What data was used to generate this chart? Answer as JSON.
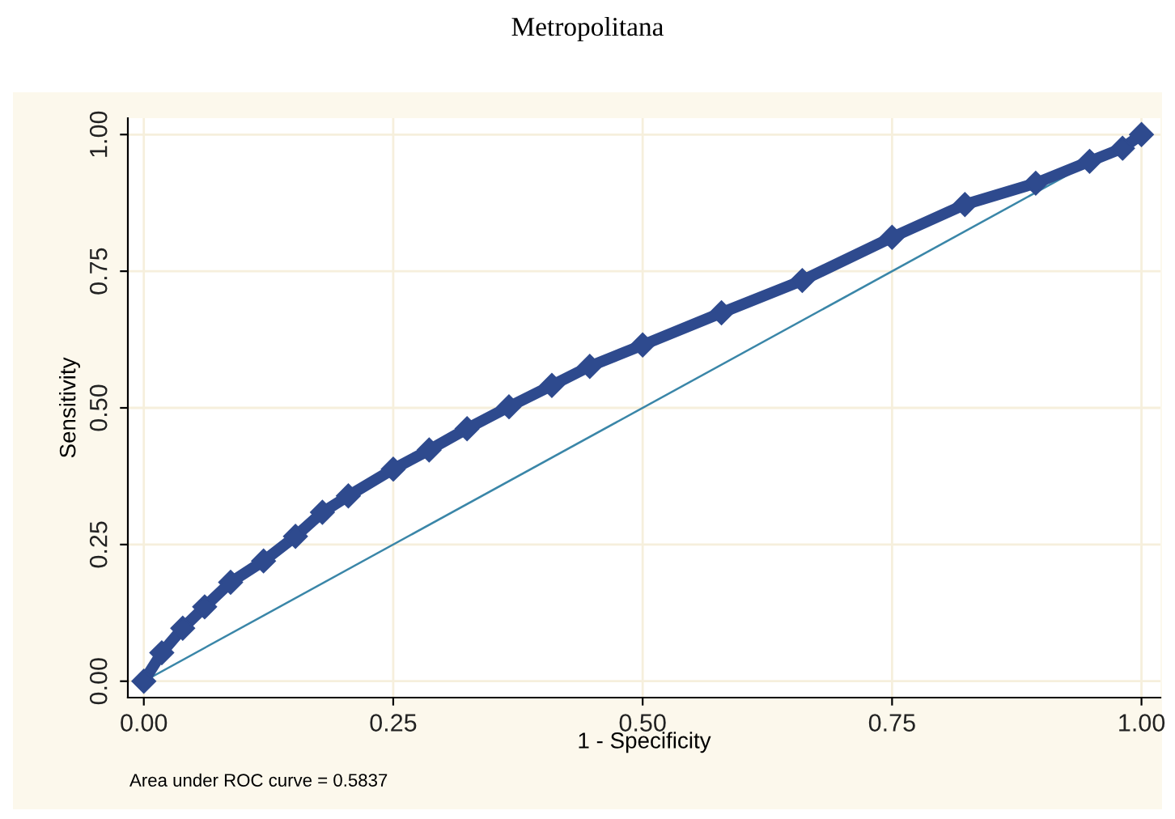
{
  "chart_data": {
    "type": "line",
    "title": "Metropolitana",
    "xlabel": "1 - Specificity",
    "ylabel": "Sensitivity",
    "annotations": [
      "Area under ROC curve = 0.5837"
    ],
    "series": [
      {
        "color": "#2e4a8e",
        "marker": "diamond",
        "x": [
          0,
          0.018,
          0.039,
          0.061,
          0.087,
          0.12,
          0.152,
          0.179,
          0.205,
          0.25,
          0.286,
          0.324,
          0.366,
          0.409,
          0.447,
          0.5,
          0.579,
          0.66,
          0.75,
          0.823,
          0.894,
          0.948,
          0.981,
          1.0
        ],
        "values": [
          0,
          0.052,
          0.097,
          0.136,
          0.181,
          0.22,
          0.265,
          0.309,
          0.339,
          0.388,
          0.423,
          0.462,
          0.502,
          0.541,
          0.576,
          0.615,
          0.674,
          0.733,
          0.812,
          0.872,
          0.911,
          0.951,
          0.975,
          1.0
        ]
      },
      {
        "color": "#3a86a8",
        "x": [
          0,
          1
        ],
        "values": [
          0,
          1
        ]
      }
    ],
    "xlim": [
      -0.016,
      1.019
    ],
    "ylim": [
      -0.03,
      1.03
    ],
    "xticks": [
      {
        "value": 0,
        "label": "0.00"
      },
      {
        "value": 0.25,
        "label": "0.25"
      },
      {
        "value": 0.5,
        "label": "0.50"
      },
      {
        "value": 0.75,
        "label": "0.75"
      },
      {
        "value": 1,
        "label": "1.00"
      }
    ],
    "yticks": [
      {
        "value": 0,
        "label": "0.00"
      },
      {
        "value": 0.25,
        "label": "0.25"
      },
      {
        "value": 0.5,
        "label": "0.50"
      },
      {
        "value": 0.75,
        "label": "0.75"
      },
      {
        "value": 1,
        "label": "1.00"
      }
    ],
    "grid": true
  }
}
